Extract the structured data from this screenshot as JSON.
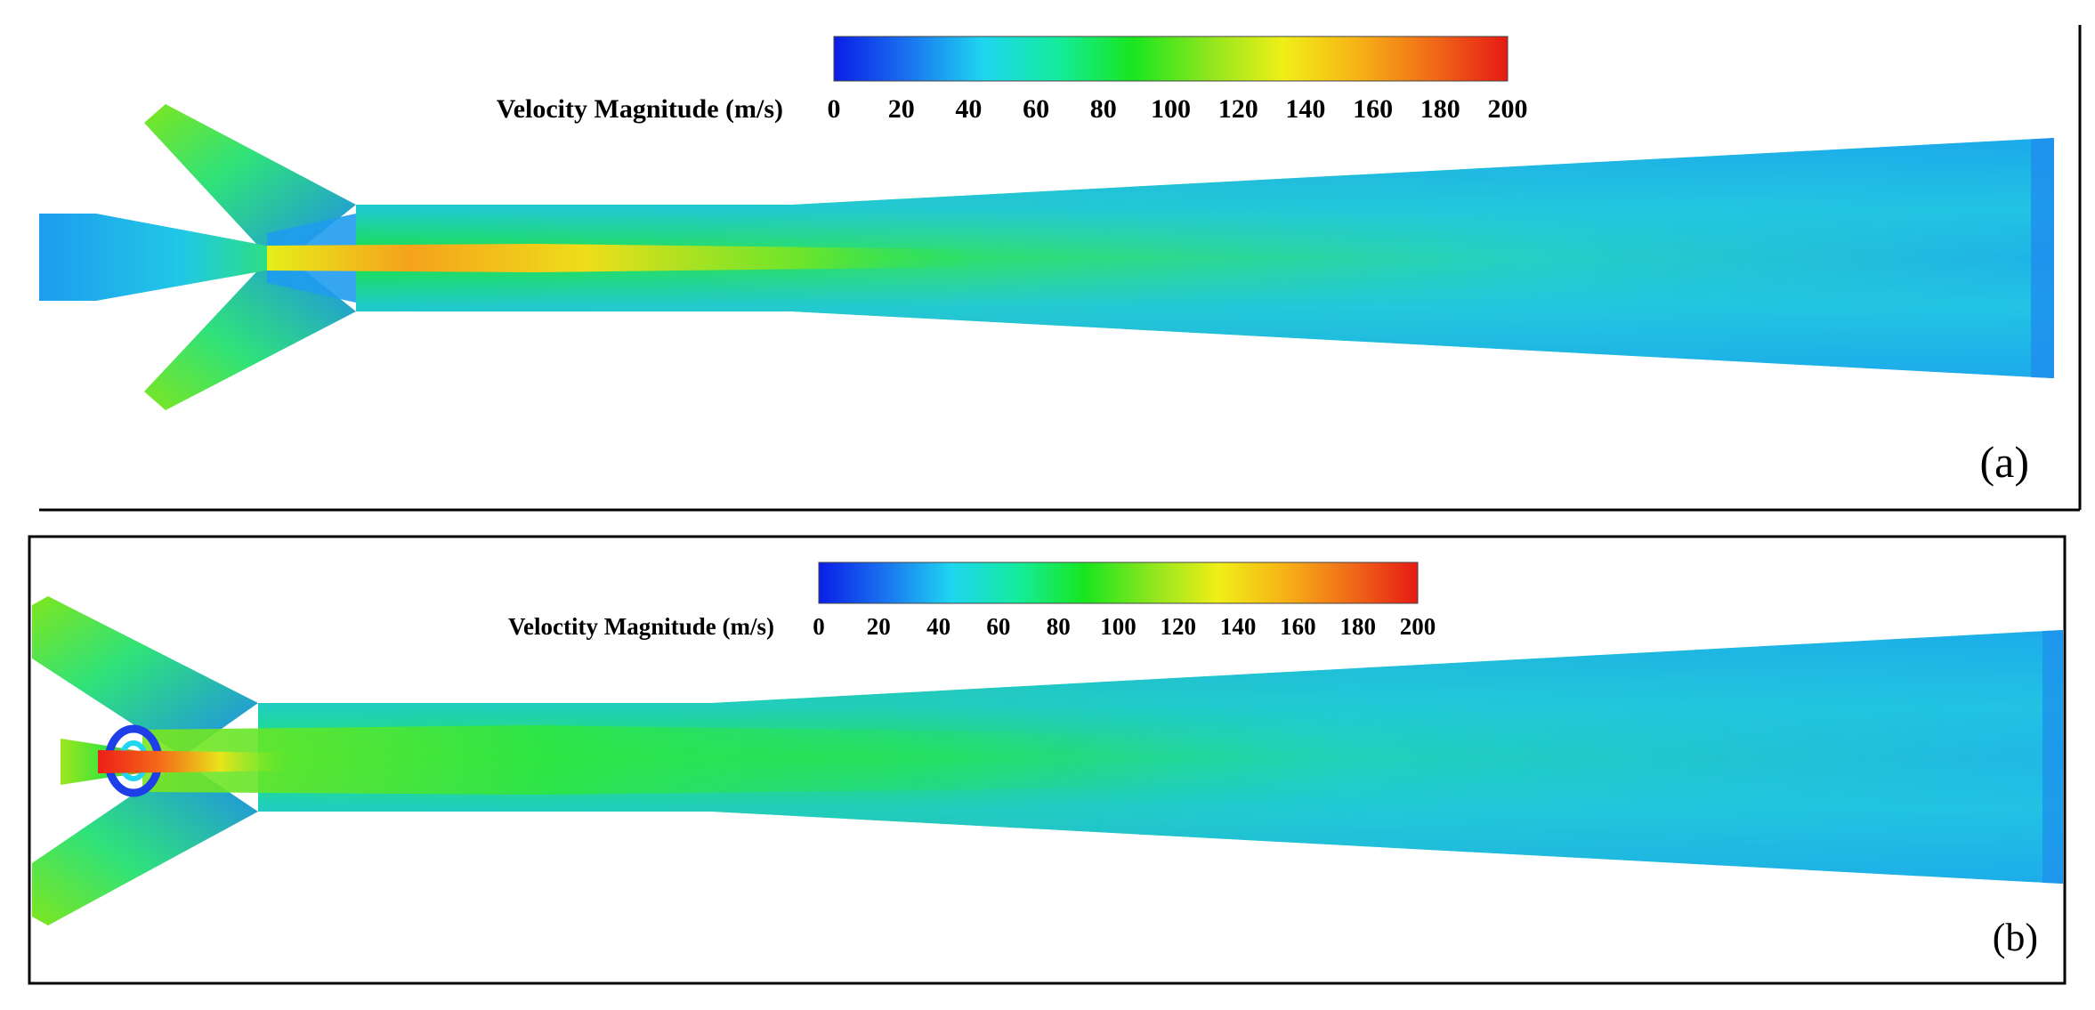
{
  "colormap": {
    "stops": [
      "#0a1ee6",
      "#1a73f0",
      "#1ed6f0",
      "#14ec9c",
      "#18e61e",
      "#8ee61e",
      "#f0ee18",
      "#f7b216",
      "#f06a18",
      "#e61a14"
    ]
  },
  "panels": [
    {
      "tag": "(a)",
      "colorbar": {
        "title": "Velocity Magnitude (m/s)",
        "ticks": [
          "0",
          "20",
          "40",
          "60",
          "80",
          "100",
          "120",
          "140",
          "160",
          "180",
          "200"
        ]
      }
    },
    {
      "tag": "(b)",
      "colorbar": {
        "title": "Veloctity Magnitude (m/s)",
        "ticks": [
          "0",
          "20",
          "40",
          "60",
          "80",
          "100",
          "120",
          "140",
          "160",
          "180",
          "200"
        ]
      }
    }
  ]
}
